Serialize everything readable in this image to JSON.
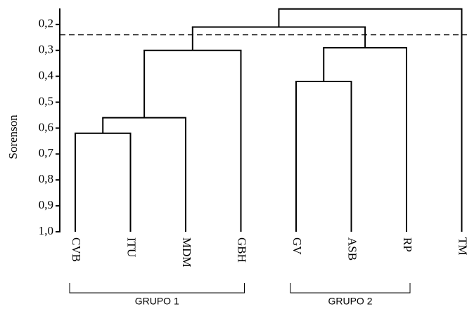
{
  "chart_data": {
    "type": "dendrogram",
    "y_label": "Sorenson",
    "ylim": [
      1.0,
      0.13
    ],
    "yticks": [
      {
        "value": 0.2,
        "label": "0,2"
      },
      {
        "value": 0.3,
        "label": "0,3"
      },
      {
        "value": 0.4,
        "label": "0,4"
      },
      {
        "value": 0.5,
        "label": "0,5"
      },
      {
        "value": 0.6,
        "label": "0,6"
      },
      {
        "value": 0.7,
        "label": "0,7"
      },
      {
        "value": 0.8,
        "label": "0,8"
      },
      {
        "value": 0.9,
        "label": "0,9"
      },
      {
        "value": 1.0,
        "label": "1,0"
      }
    ],
    "leaves": [
      "CVB",
      "ITU",
      "MDM",
      "GBH",
      "GV",
      "ASB",
      "RP",
      "TM"
    ],
    "merges": [
      {
        "children": [
          0,
          1
        ],
        "height": 0.62
      },
      {
        "children": [
          8,
          2
        ],
        "height": 0.56
      },
      {
        "children": [
          9,
          3
        ],
        "height": 0.3
      },
      {
        "children": [
          4,
          5
        ],
        "height": 0.42
      },
      {
        "children": [
          11,
          6
        ],
        "height": 0.29
      },
      {
        "children": [
          10,
          12
        ],
        "height": 0.21
      },
      {
        "children": [
          13,
          7
        ],
        "height": 0.14
      }
    ],
    "cutoff": 0.24,
    "groups": [
      {
        "label": "GRUPO 1",
        "leaves": [
          0,
          3
        ]
      },
      {
        "label": "GRUPO 2",
        "leaves": [
          4,
          6
        ]
      }
    ],
    "color": "#000000"
  }
}
